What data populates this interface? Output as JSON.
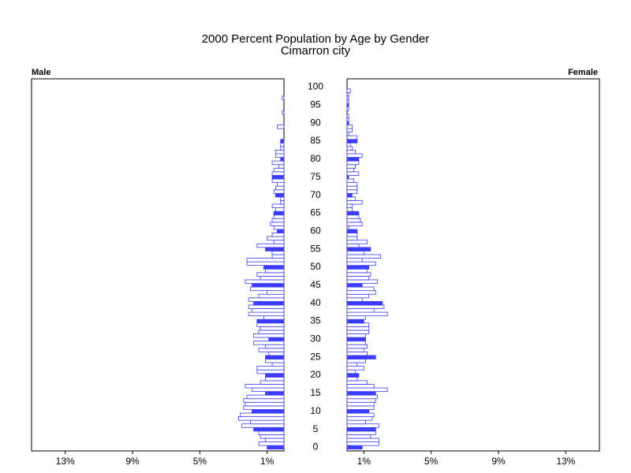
{
  "chart_data": {
    "type": "pyramid",
    "title": "2000 Percent Population by Age by Gender",
    "subtitle": "Cimarron city",
    "y": [
      0,
      1,
      2,
      3,
      4,
      5,
      6,
      7,
      8,
      9,
      10,
      11,
      12,
      13,
      14,
      15,
      16,
      17,
      18,
      19,
      20,
      21,
      22,
      23,
      24,
      25,
      26,
      27,
      28,
      29,
      30,
      31,
      32,
      33,
      34,
      35,
      36,
      37,
      38,
      39,
      40,
      41,
      42,
      43,
      44,
      45,
      46,
      47,
      48,
      49,
      50,
      51,
      52,
      53,
      54,
      55,
      56,
      57,
      58,
      59,
      60,
      61,
      62,
      63,
      64,
      65,
      66,
      67,
      68,
      69,
      70,
      71,
      72,
      73,
      74,
      75,
      76,
      77,
      78,
      79,
      80,
      81,
      82,
      83,
      84,
      85,
      86,
      87,
      88,
      89,
      90,
      91,
      92,
      93,
      94,
      95,
      96,
      97,
      98,
      99,
      100
    ],
    "ylim": [
      -1,
      102.3
    ],
    "yticks": [
      0,
      5,
      10,
      15,
      20,
      25,
      30,
      35,
      40,
      45,
      50,
      55,
      60,
      65,
      70,
      75,
      80,
      85,
      90,
      95,
      100
    ],
    "xlim": [
      0,
      15
    ],
    "xticks": [
      {
        "value": 1,
        "label": "1%"
      },
      {
        "value": 5,
        "label": "5%"
      },
      {
        "value": 9,
        "label": "9%"
      },
      {
        "value": 13,
        "label": "13%"
      }
    ],
    "series": [
      {
        "name": "Male",
        "color": "#3c3cff",
        "values": [
          1.0,
          1.5,
          1.1,
          1.4,
          1.5,
          1.8,
          2.5,
          2.0,
          2.7,
          2.6,
          1.9,
          2.4,
          2.3,
          2.4,
          2.2,
          1.1,
          1.9,
          2.3,
          1.4,
          1.1,
          1.1,
          1.6,
          1.6,
          0.7,
          1.1,
          1.1,
          0.9,
          1.5,
          1.1,
          1.8,
          0.9,
          1.8,
          1.5,
          1.4,
          1.6,
          1.6,
          1.2,
          2.1,
          1.9,
          2.1,
          1.8,
          2.1,
          1.5,
          1.0,
          2.0,
          1.9,
          2.3,
          1.4,
          1.6,
          1.1,
          1.2,
          2.2,
          2.2,
          0.7,
          0.7,
          1.1,
          1.6,
          0.6,
          1.0,
          0.7,
          0.4,
          0.6,
          0.8,
          0.7,
          0.6,
          0.6,
          0.5,
          0.7,
          0.2,
          0.2,
          0.5,
          0.6,
          0.5,
          0.4,
          0.7,
          0.7,
          0.7,
          0.6,
          0.3,
          0.7,
          0.2,
          0.5,
          0.5,
          0.2,
          0.2,
          0.2,
          0,
          0,
          0,
          0.4,
          0,
          0,
          0,
          0.1,
          0,
          0,
          0,
          0.1,
          0,
          0,
          0
        ]
      },
      {
        "name": "Female",
        "color": "#3c3cff",
        "values": [
          0.9,
          1.9,
          1.9,
          1.4,
          1.7,
          1.7,
          1.9,
          1.1,
          1.5,
          1.6,
          1.3,
          1.6,
          1.6,
          1.7,
          1.8,
          1.7,
          2.4,
          1.6,
          1.2,
          0.6,
          0.7,
          0.5,
          1.0,
          0.6,
          1.1,
          1.7,
          1.2,
          1.0,
          1.2,
          1.1,
          1.1,
          1.1,
          1.3,
          1.3,
          1.3,
          1.0,
          1.1,
          2.4,
          1.6,
          2.2,
          2.1,
          0.9,
          1.3,
          1.7,
          1.6,
          0.9,
          1.8,
          1.3,
          1.4,
          1.2,
          1.3,
          1.7,
          0.9,
          2.0,
          1.0,
          1.4,
          0.7,
          1.2,
          0.6,
          0.6,
          0.6,
          0.1,
          0.9,
          0.8,
          0.7,
          0.7,
          0.3,
          0.3,
          0.9,
          0.5,
          0.3,
          0.6,
          0.6,
          0.6,
          0.4,
          0.1,
          0.7,
          0.4,
          0.5,
          0.7,
          0.7,
          0.9,
          0.5,
          0.3,
          0.2,
          0.6,
          0.6,
          0.1,
          0.3,
          0.3,
          0.1,
          0.1,
          0.1,
          0,
          0.1,
          0.1,
          0.1,
          0.1,
          0.1,
          0.2,
          0
        ]
      }
    ]
  }
}
